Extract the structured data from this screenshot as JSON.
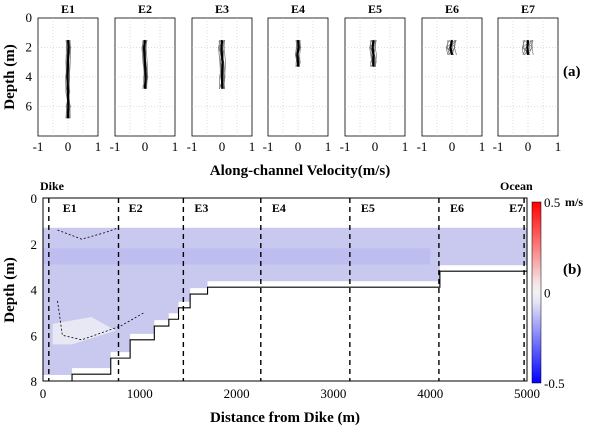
{
  "figure": {
    "panel_a_label": "(a)",
    "panel_b_label": "(b)",
    "dike_label": "Dike",
    "ocean_label": "Ocean"
  },
  "chart_data": [
    {
      "type": "line",
      "panel": "(a)",
      "subplots": [
        "E1",
        "E2",
        "E3",
        "E4",
        "E5",
        "E6",
        "E7"
      ],
      "xlabel": "Along-channel Velocity(m/s)",
      "ylabel": "Depth (m)",
      "xlim": [
        -1,
        1
      ],
      "ylim": [
        0,
        8
      ],
      "y_inverted": true,
      "xticks": [
        "-1",
        "0",
        "1"
      ],
      "yticks": [
        "0",
        "2",
        "4",
        "6"
      ],
      "grid": true,
      "profiles": [
        {
          "name": "E1",
          "depth": [
            1.5,
            2,
            3,
            4,
            5,
            6,
            6.8
          ],
          "mean_velocity": [
            0.0,
            0.02,
            0.0,
            -0.02,
            0.0,
            0.01,
            0.0
          ],
          "spread": 0.15
        },
        {
          "name": "E2",
          "depth": [
            1.5,
            2,
            3,
            4,
            4.8
          ],
          "mean_velocity": [
            0.0,
            -0.03,
            0.0,
            0.02,
            0.0
          ],
          "spread": 0.15
        },
        {
          "name": "E3",
          "depth": [
            1.5,
            2,
            3,
            4,
            4.8
          ],
          "mean_velocity": [
            0.0,
            -0.02,
            0.02,
            0.0,
            0.01
          ],
          "spread": 0.2
        },
        {
          "name": "E4",
          "depth": [
            1.5,
            2,
            2.5,
            3,
            3.3
          ],
          "mean_velocity": [
            0.0,
            0.02,
            -0.02,
            0.0,
            0.0
          ],
          "spread": 0.15
        },
        {
          "name": "E5",
          "depth": [
            1.5,
            2,
            2.5,
            3,
            3.3
          ],
          "mean_velocity": [
            -0.05,
            -0.08,
            -0.05,
            -0.06,
            -0.05
          ],
          "spread": 0.2
        },
        {
          "name": "E6",
          "depth": [
            1.5,
            2,
            2.5
          ],
          "mean_velocity": [
            0.0,
            -0.05,
            0.0
          ],
          "spread": 0.3
        },
        {
          "name": "E7",
          "depth": [
            1.5,
            2,
            2.5
          ],
          "mean_velocity": [
            0.0,
            -0.02,
            0.0
          ],
          "spread": 0.35
        }
      ]
    },
    {
      "type": "heatmap",
      "panel": "(b)",
      "xlabel": "Distance from Dike (m)",
      "ylabel": "Depth (m)",
      "xlim": [
        0,
        5000
      ],
      "ylim": [
        0,
        8
      ],
      "y_inverted": true,
      "xticks": [
        "0",
        "1000",
        "2000",
        "3000",
        "4000",
        "5000"
      ],
      "yticks": [
        "0",
        "2",
        "4",
        "6",
        "8"
      ],
      "colorbar": {
        "min": -0.5,
        "max": 0.5,
        "ticks": [
          "0.5",
          "0",
          "-0.5"
        ],
        "unit": "m/s"
      },
      "station_labels": [
        "E1",
        "E2",
        "E3",
        "E4",
        "E5",
        "E6",
        "E7"
      ],
      "station_positions_m": [
        80,
        760,
        1440,
        2240,
        3160,
        4080,
        4960
      ],
      "field_description_value": -0.15,
      "bottom_profile": {
        "x": [
          0,
          300,
          300,
          700,
          700,
          900,
          900,
          1150,
          1150,
          1300,
          1300,
          1400,
          1400,
          1520,
          1520,
          1700,
          1700,
          4100,
          4100,
          5000
        ],
        "depth": [
          8.0,
          8.0,
          7.7,
          7.7,
          7.0,
          7.0,
          6.2,
          6.2,
          5.6,
          5.6,
          5.3,
          5.3,
          4.8,
          4.8,
          4.2,
          4.2,
          3.9,
          3.9,
          3.2,
          3.2
        ]
      },
      "top_of_data_depth": 1.3
    }
  ]
}
